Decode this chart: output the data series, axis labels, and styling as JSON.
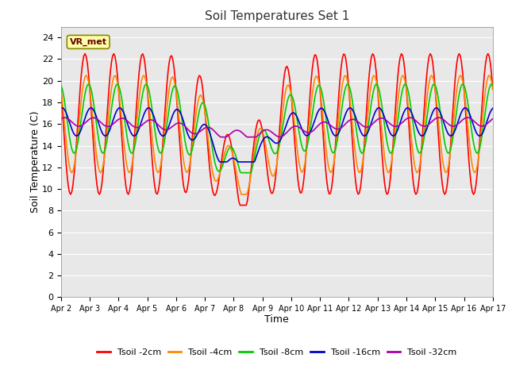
{
  "title": "Soil Temperatures Set 1",
  "xlabel": "Time",
  "ylabel": "Soil Temperature (C)",
  "ylim": [
    0,
    25
  ],
  "yticks": [
    0,
    2,
    4,
    6,
    8,
    10,
    12,
    14,
    16,
    18,
    20,
    22,
    24
  ],
  "fig_bg_color": "#ffffff",
  "plot_bg_color": "#e8e8e8",
  "annotation_text": "VR_met",
  "series": [
    {
      "label": "Tsoil -2cm",
      "color": "#ff0000"
    },
    {
      "label": "Tsoil -4cm",
      "color": "#ff8800"
    },
    {
      "label": "Tsoil -8cm",
      "color": "#00cc00"
    },
    {
      "label": "Tsoil -16cm",
      "color": "#0000cc"
    },
    {
      "label": "Tsoil -32cm",
      "color": "#aa00aa"
    }
  ],
  "xticklabels": [
    "Apr 2",
    "Apr 3",
    "Apr 4",
    "Apr 5",
    "Apr 6",
    "Apr 7",
    "Apr 8",
    "Apr 9",
    "Apr 10",
    "Apr 11",
    "Apr 12",
    "Apr 13",
    "Apr 14",
    "Apr 15",
    "Apr 16",
    "Apr 17"
  ]
}
